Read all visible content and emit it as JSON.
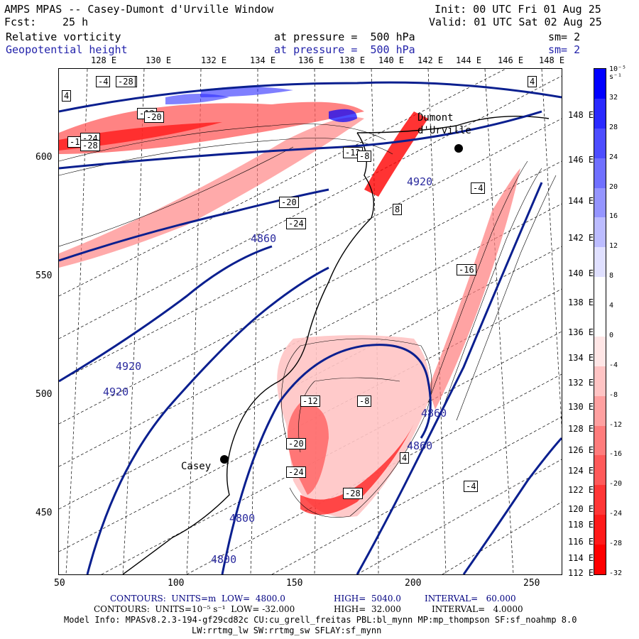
{
  "header": {
    "title_left": "AMPS MPAS -- Casey-Dumont d'Urville Window",
    "init": "Init: 00 UTC Fri 01 Aug 25",
    "fcst_label": "Fcst:",
    "fcst_value": "25 h",
    "valid": "Valid: 01 UTC Sat 02 Aug 25",
    "field1_name": "Relative vorticity",
    "field1_level": "at pressure =  500 hPa",
    "field1_sm": "sm= 2",
    "field2_name": "Geopotential height",
    "field2_level": "at pressure =  500 hPa",
    "field2_sm": "sm= 2"
  },
  "lon_labels": [
    "128 E",
    "130 E",
    "132 E",
    "134 E",
    "136 E",
    "138 E",
    "140 E",
    "142 E",
    "144 E",
    "146 E",
    "148 E"
  ],
  "lat_labels": [
    "148 E",
    "146 E",
    "144 E",
    "142 E",
    "140 E",
    "138 E",
    "136 E",
    "134 E",
    "132 E",
    "130 E",
    "128 E",
    "126 E",
    "124 E",
    "122 E",
    "120 E",
    "118 E",
    "116 E",
    "114 E",
    "112 E"
  ],
  "y_ticks": [
    "600",
    "550",
    "500",
    "450"
  ],
  "x_ticks": [
    "50",
    "100",
    "150",
    "200",
    "250"
  ],
  "colorbar": {
    "unit": "10⁻⁵ s⁻¹",
    "ticks": [
      "32",
      "28",
      "24",
      "20",
      "16",
      "12",
      "8",
      "4",
      "0",
      "-4",
      "-8",
      "-12",
      "-16",
      "-20",
      "-24",
      "-28",
      "-32"
    ],
    "colors": [
      "#0000ff",
      "#2a2aff",
      "#4d4dff",
      "#7070ff",
      "#9595ff",
      "#bcbcff",
      "#e0e0ff",
      "#ffffff",
      "#ffffff",
      "#ffe6e6",
      "#ffc4c4",
      "#ffa0a0",
      "#ff7c7c",
      "#ff5a5a",
      "#ff3636",
      "#ff1a1a",
      "#ff0000"
    ]
  },
  "stations": {
    "casey": "Casey",
    "dumont": "Dumont d'Urville"
  },
  "contour_labels": {
    "height": [
      "4920",
      "4920",
      "4920",
      "4860",
      "4860",
      "4800",
      "4800",
      "4860"
    ],
    "vort": [
      "-4",
      "-8",
      "-12",
      "-16",
      "-20",
      "-24",
      "-28",
      "4",
      "8",
      "-12",
      "-16",
      "-20",
      "-24",
      "-28",
      "-8",
      "-4",
      "4",
      "-12",
      "-20",
      "-24",
      "-28",
      "-8",
      "4",
      "-4"
    ]
  },
  "footer": {
    "line1_a": "CONTOURS:  UNITS=m  LOW=  4800.0",
    "line1_b": "HIGH=  5040.0",
    "line1_c": "INTERVAL=   60.000",
    "line2_a": "CONTOURS:  UNITS=10⁻⁵ s⁻¹  LOW= -32.000",
    "line2_b": "HIGH=  32.000",
    "line2_c": "INTERVAL=   4.0000",
    "line3": "Model Info: MPASv8.2.3-194-gf29cd82c CU:cu_grell_freitas PBL:bl_mynn MP:mp_thompson SF:sf_noahmp 8.0",
    "line4": "LW:rrtmg_lw SW:rrtmg_sw SFLAY:sf_mynn"
  }
}
